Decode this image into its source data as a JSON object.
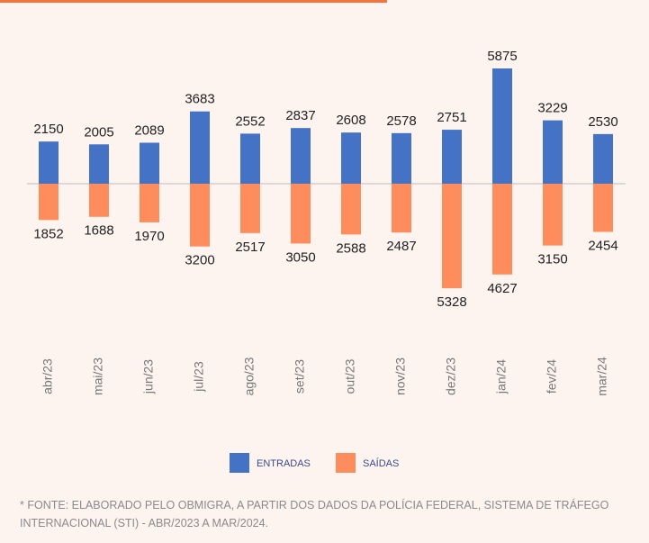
{
  "chart_data": {
    "type": "bar",
    "categories": [
      "abr/23",
      "mai/23",
      "jun/23",
      "jul/23",
      "ago/23",
      "set/23",
      "out/23",
      "nov/23",
      "dez/23",
      "jan/24",
      "fev/24",
      "mar/24"
    ],
    "series": [
      {
        "name": "ENTRADAS",
        "color": "#4472c4",
        "values": [
          2150,
          2005,
          2089,
          3683,
          2552,
          2837,
          2608,
          2578,
          2751,
          5875,
          3229,
          2530
        ]
      },
      {
        "name": "SAÍDAS",
        "color": "#fe8c5c",
        "values": [
          -1852,
          -1688,
          -1970,
          -3200,
          -2517,
          -3050,
          -2588,
          -2487,
          -5328,
          -4627,
          -3150,
          -2454
        ],
        "value_labels": [
          "1852",
          "1688",
          "1970",
          "3200",
          "2517",
          "3050",
          "2588",
          "2487",
          "5328",
          "4627",
          "3150",
          "2454"
        ]
      }
    ],
    "legend": "bottom",
    "footnote": "* FONTE: ELABORADO PELO OBMIGRA, A PARTIR DOS DADOS DA POLÍCIA FEDERAL, SISTEMA DE TRÁFEGO INTERNACIONAL (STI) - ABR/2023 A MAR/2024."
  }
}
